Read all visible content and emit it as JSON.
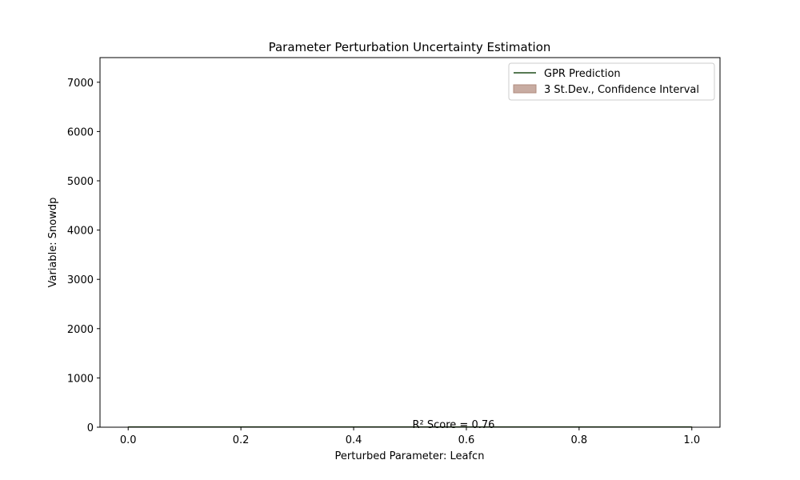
{
  "chart_data": {
    "type": "line",
    "title": "Parameter Perturbation Uncertainty Estimation",
    "xlabel": "Perturbed Parameter: Leafcn",
    "ylabel": "Variable: Snowdp",
    "xlim": [
      -0.05,
      1.05
    ],
    "ylim": [
      0,
      7500
    ],
    "xticks": [
      0.0,
      0.2,
      0.4,
      0.6,
      0.8,
      1.0
    ],
    "xtick_labels": [
      "0.0",
      "0.2",
      "0.4",
      "0.6",
      "0.8",
      "1.0"
    ],
    "yticks": [
      0,
      1000,
      2000,
      3000,
      4000,
      5000,
      6000,
      7000
    ],
    "ytick_labels": [
      "0",
      "1000",
      "2000",
      "3000",
      "4000",
      "5000",
      "6000",
      "7000"
    ],
    "grid": false,
    "legend_position": "top-right",
    "series": [
      {
        "name": "GPR Prediction",
        "kind": "line",
        "color": "#1f4d1a",
        "x": [
          0.0,
          0.1,
          0.2,
          0.3,
          0.4,
          0.5,
          0.6,
          0.7,
          0.8,
          0.9,
          1.0
        ],
        "y": [
          5,
          5,
          5,
          5,
          5,
          5,
          5,
          5,
          5,
          5,
          5
        ]
      },
      {
        "name": "3 St.Dev., Confidence Interval",
        "kind": "band",
        "color": "#c8aca2",
        "edge_color": "#b08b7e",
        "x": [
          0.0,
          0.1,
          0.2,
          0.3,
          0.4,
          0.5,
          0.6,
          0.7,
          0.8,
          0.9,
          1.0
        ],
        "lower": [
          0,
          0,
          0,
          0,
          0,
          0,
          0,
          0,
          0,
          0,
          0
        ],
        "upper": [
          10,
          10,
          10,
          10,
          10,
          10,
          10,
          10,
          10,
          10,
          10
        ]
      }
    ],
    "annotation": {
      "text": "R² Score = 0.76",
      "x": 0.5,
      "y": 20
    }
  }
}
